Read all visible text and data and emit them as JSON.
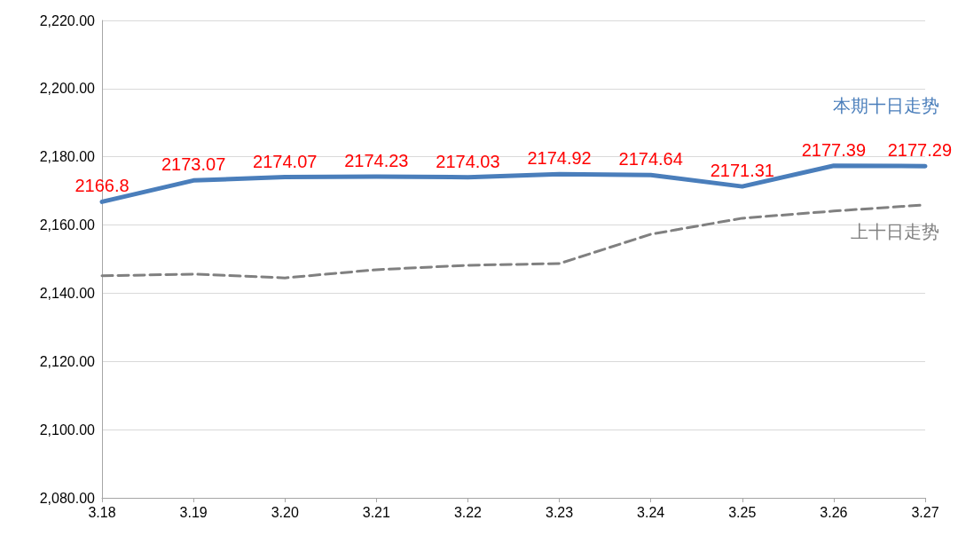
{
  "chart_data": {
    "type": "line",
    "categories": [
      "3.18",
      "3.19",
      "3.20",
      "3.21",
      "3.22",
      "3.23",
      "3.24",
      "3.25",
      "3.26",
      "3.27"
    ],
    "series": [
      {
        "name": "本期十日走势",
        "color": "#4a7ebb",
        "line_style": "solid",
        "value_labels": [
          "2166.8",
          "2173.07",
          "2174.07",
          "2174.23",
          "2174.03",
          "2174.92",
          "2174.64",
          "2171.31",
          "2177.39",
          "2177.29"
        ],
        "values": [
          2166.8,
          2173.07,
          2174.07,
          2174.23,
          2174.03,
          2174.92,
          2174.64,
          2171.31,
          2177.39,
          2177.29
        ]
      },
      {
        "name": "上十日走势",
        "color": "#808080",
        "line_style": "dashed",
        "values": [
          2145.1,
          2145.6,
          2144.5,
          2146.9,
          2148.2,
          2148.7,
          2157.3,
          2162.0,
          2164.1,
          2165.9
        ]
      }
    ],
    "ylim": [
      2080,
      2220
    ],
    "yticks": [
      {
        "value": 2080,
        "label": "2,080.00"
      },
      {
        "value": 2100,
        "label": "2,100.00"
      },
      {
        "value": 2120,
        "label": "2,120.00"
      },
      {
        "value": 2140,
        "label": "2,140.00"
      },
      {
        "value": 2160,
        "label": "2,160.00"
      },
      {
        "value": 2180,
        "label": "2,180.00"
      },
      {
        "value": 2200,
        "label": "2,200.00"
      },
      {
        "value": 2220,
        "label": "2,220.00"
      }
    ],
    "grid": "y",
    "marker": "none"
  }
}
